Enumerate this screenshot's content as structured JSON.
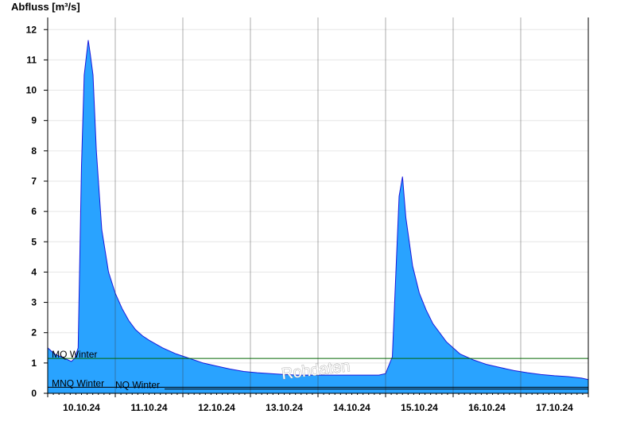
{
  "chart_data": {
    "type": "area",
    "ylabel": "Abfluss [m³/s]",
    "ylim": [
      0,
      12.4
    ],
    "yticks": [
      0,
      1,
      2,
      3,
      4,
      5,
      6,
      7,
      8,
      9,
      10,
      11,
      12
    ],
    "xlim": [
      -0.5,
      7.5
    ],
    "xticks": [
      {
        "label": "10.10.24",
        "pos": 0
      },
      {
        "label": "11.10.24",
        "pos": 1
      },
      {
        "label": "12.10.24",
        "pos": 2
      },
      {
        "label": "13.10.24",
        "pos": 3
      },
      {
        "label": "14.10.24",
        "pos": 4
      },
      {
        "label": "15.10.24",
        "pos": 5
      },
      {
        "label": "16.10.24",
        "pos": 6
      },
      {
        "label": "17.10.24",
        "pos": 7
      }
    ],
    "grid": true,
    "legend": "none",
    "series": [
      {
        "fill_color": "#29a3ff",
        "line_color": "#1a1adc",
        "x": [
          -0.5,
          -0.45,
          -0.4,
          -0.3,
          -0.2,
          -0.15,
          -0.1,
          -0.05,
          0.0,
          0.04,
          0.1,
          0.13,
          0.17,
          0.2,
          0.22,
          0.25,
          0.3,
          0.4,
          0.5,
          0.6,
          0.7,
          0.8,
          0.9,
          1.0,
          1.2,
          1.4,
          1.6,
          1.8,
          2.0,
          2.2,
          2.4,
          2.6,
          2.8,
          3.0,
          3.2,
          3.4,
          3.6,
          3.8,
          4.0,
          4.2,
          4.4,
          4.5,
          4.6,
          4.7,
          4.75,
          4.8,
          4.85,
          4.9,
          5.0,
          5.1,
          5.2,
          5.4,
          5.6,
          5.8,
          6.0,
          6.2,
          6.4,
          6.6,
          6.8,
          7.0,
          7.2,
          7.4,
          7.5
        ],
        "y": [
          1.5,
          1.4,
          1.3,
          1.2,
          1.1,
          1.05,
          1.15,
          1.5,
          7.5,
          10.5,
          11.65,
          11.2,
          10.5,
          9.0,
          8.0,
          7.0,
          5.4,
          4.0,
          3.3,
          2.8,
          2.4,
          2.1,
          1.9,
          1.75,
          1.5,
          1.3,
          1.15,
          1.0,
          0.9,
          0.8,
          0.72,
          0.68,
          0.65,
          0.62,
          0.6,
          0.6,
          0.6,
          0.6,
          0.6,
          0.6,
          0.6,
          0.65,
          1.2,
          6.5,
          7.15,
          5.8,
          5.0,
          4.2,
          3.3,
          2.75,
          2.3,
          1.7,
          1.3,
          1.1,
          0.95,
          0.85,
          0.75,
          0.68,
          0.62,
          0.58,
          0.55,
          0.5,
          0.45
        ]
      }
    ],
    "reference_lines": [
      {
        "label": "MQ Winter",
        "value": 1.15,
        "color": "#006600",
        "label_x": -0.44
      },
      {
        "label": "MNQ Winter",
        "value": 0.2,
        "color": "#000000",
        "label_x": -0.44
      },
      {
        "label": "NQ Winter",
        "value": 0.14,
        "color": "#000000",
        "label_x": 0.5
      }
    ],
    "watermark": "Rohdaten"
  }
}
